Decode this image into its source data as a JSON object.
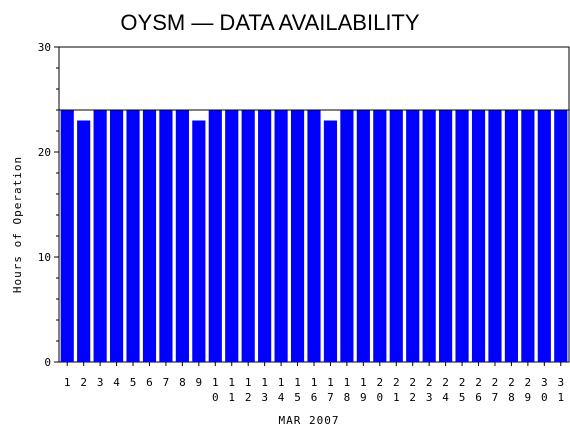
{
  "chart_data": {
    "type": "bar",
    "title": "OYSM  —  DATA AVAILABILITY",
    "xlabel": "MAR 2007",
    "ylabel": "Hours of Operation",
    "ylim": [
      0,
      30
    ],
    "yticks": [
      "0",
      "10",
      "20",
      "30"
    ],
    "categories": [
      "1",
      "2",
      "3",
      "4",
      "5",
      "6",
      "7",
      "8",
      "9",
      "10",
      "11",
      "12",
      "13",
      "14",
      "15",
      "16",
      "17",
      "18",
      "19",
      "20",
      "21",
      "22",
      "23",
      "24",
      "25",
      "26",
      "27",
      "28",
      "29",
      "30",
      "31"
    ],
    "values": [
      24,
      23,
      24,
      24,
      24,
      24,
      24,
      24,
      23,
      24,
      24,
      24,
      24,
      24,
      24,
      24,
      23,
      24,
      24,
      24,
      24,
      24,
      24,
      24,
      24,
      24,
      24,
      24,
      24,
      24,
      24
    ],
    "reference_line": 24,
    "colors": {
      "bar": "#0000ff",
      "reference": "#000000"
    },
    "grid": false
  }
}
